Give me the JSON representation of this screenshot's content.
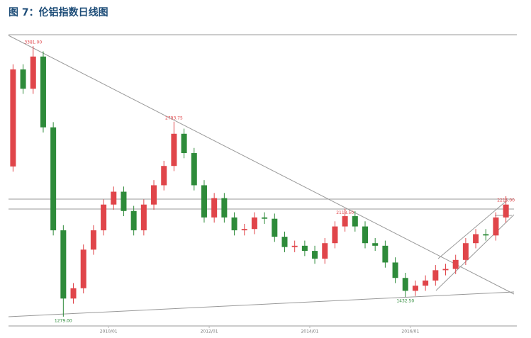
{
  "chart_data": {
    "type": "candlestick",
    "title": "图 7：伦铝指数日线图",
    "x": [
      2008.1,
      2008.3,
      2008.5,
      2008.7,
      2008.9,
      2009.1,
      2009.3,
      2009.5,
      2009.7,
      2009.9,
      2010.1,
      2010.3,
      2010.5,
      2010.7,
      2010.9,
      2011.1,
      2011.3,
      2011.5,
      2011.7,
      2011.9,
      2012.1,
      2012.3,
      2012.5,
      2012.7,
      2012.9,
      2013.1,
      2013.3,
      2013.5,
      2013.7,
      2013.9,
      2014.1,
      2014.3,
      2014.5,
      2014.7,
      2014.9,
      2015.1,
      2015.3,
      2015.5,
      2015.7,
      2015.9,
      2016.1,
      2016.3,
      2016.5,
      2016.7,
      2016.9,
      2017.1,
      2017.3,
      2017.5,
      2017.7,
      2017.9
    ],
    "open": [
      2446,
      3200,
      3050,
      3300,
      2750,
      1950,
      1420,
      1500,
      1800,
      1950,
      2150,
      2250,
      2100,
      1950,
      2150,
      2300,
      2450,
      2700,
      2550,
      2300,
      2050,
      2200,
      2050,
      1950,
      1960,
      2050,
      2040,
      1900,
      1820,
      1830,
      1790,
      1730,
      1850,
      1980,
      2060,
      1980,
      1850,
      1830,
      1700,
      1580,
      1480,
      1520,
      1560,
      1640,
      1650,
      1720,
      1850,
      1920,
      1910,
      2050
    ],
    "high": [
      3240,
      3240,
      3381,
      3340,
      2790,
      1990,
      1540,
      1840,
      1990,
      2190,
      2290,
      2290,
      2140,
      2190,
      2340,
      2490,
      2793.75,
      2740,
      2590,
      2340,
      2240,
      2240,
      2090,
      2000,
      2090,
      2090,
      2080,
      1940,
      1870,
      1870,
      1830,
      1890,
      2020,
      2118.5,
      2100,
      2020,
      1890,
      1870,
      1740,
      1620,
      1560,
      1600,
      1680,
      1690,
      1760,
      1890,
      1960,
      1960,
      2090,
      2215
    ],
    "low": [
      2406,
      3010,
      3010,
      2710,
      1910,
      1279,
      1380,
      1460,
      1760,
      1910,
      2110,
      2060,
      1910,
      1910,
      2110,
      2260,
      2410,
      2510,
      2260,
      2010,
      2010,
      2010,
      1910,
      1910,
      1920,
      2000,
      1860,
      1780,
      1780,
      1750,
      1690,
      1690,
      1810,
      1940,
      1940,
      1810,
      1790,
      1660,
      1540,
      1432.5,
      1440,
      1480,
      1520,
      1600,
      1610,
      1680,
      1810,
      1870,
      1870,
      2010
    ],
    "close": [
      3200,
      3050,
      3300,
      2750,
      1950,
      1420,
      1500,
      1800,
      1950,
      2150,
      2250,
      2100,
      1950,
      2150,
      2300,
      2450,
      2700,
      2550,
      2300,
      2050,
      2200,
      2050,
      1950,
      1960,
      2050,
      2040,
      1900,
      1820,
      1830,
      1790,
      1730,
      1850,
      1980,
      2060,
      1980,
      1850,
      1830,
      1700,
      1580,
      1480,
      1520,
      1560,
      1640,
      1650,
      1720,
      1850,
      1920,
      1910,
      2050,
      2150
    ],
    "up_color": "#e0454a",
    "down_color": "#2e8b3a",
    "xlim": [
      2008.01,
      2018.06
    ],
    "ylim": [
      1207,
      3464
    ],
    "xticks": [
      {
        "value": 2010.0,
        "label": "2010/01"
      },
      {
        "value": 2012.0,
        "label": "2012/01"
      },
      {
        "value": 2014.0,
        "label": "2014/01"
      },
      {
        "value": 2016.0,
        "label": "2016/01"
      }
    ],
    "annotations": [
      {
        "label": "3381.00",
        "x": 2008.5,
        "value": 3381,
        "color": "#e0454a"
      },
      {
        "label": "2793.75",
        "x": 2011.3,
        "value": 2793.75,
        "color": "#e0454a"
      },
      {
        "label": "2118.50",
        "x": 2014.7,
        "value": 2118.5,
        "color": "#e0454a"
      },
      {
        "label": "2215.00",
        "x": 2017.9,
        "value": 2215,
        "color": "#e0454a"
      },
      {
        "label": "1279.00",
        "x": 2009.1,
        "value": 1279,
        "color": "#2e8b3a"
      },
      {
        "label": "1432.50",
        "x": 2015.9,
        "value": 1432.5,
        "color": "#2e8b3a"
      }
    ]
  }
}
